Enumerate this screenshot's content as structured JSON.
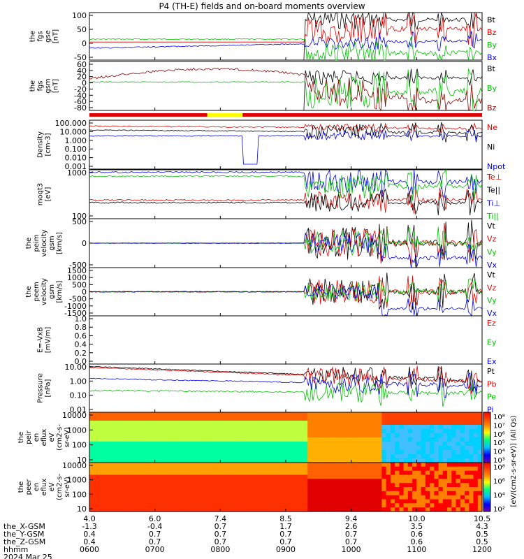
{
  "title": "P4 (TH-E) fields and on-board moments overview",
  "chart_data": [
    {
      "type": "line",
      "ylabel_lines": [
        "the",
        "fgs",
        "gse",
        "[nT]"
      ],
      "yticks": [
        "100",
        "50",
        "0",
        "-50"
      ],
      "ylim": [
        -60,
        100
      ],
      "legend": [
        {
          "name": "Bt",
          "color": "#000000"
        },
        {
          "name": "Bz",
          "color": "#e00000"
        },
        {
          "name": "By",
          "color": "#00c000"
        },
        {
          "name": "Bx",
          "color": "#0000e0"
        }
      ]
    },
    {
      "type": "line",
      "ylabel_lines": [
        "the",
        "fgs",
        "gsm",
        "[nT]"
      ],
      "yticks": [
        "60",
        "40",
        "20",
        "0",
        "-20",
        "-40",
        "-60",
        "-80"
      ],
      "ylim": [
        -90,
        60
      ],
      "legend": [
        {
          "name": "Bt",
          "color": "#000000"
        },
        {
          "name": "By",
          "color": "#00c000"
        },
        {
          "name": "Bz",
          "color": "#8b0000"
        }
      ]
    },
    {
      "type": "line",
      "ylabel_lines": [
        "Density",
        "[cm-3]"
      ],
      "yticks": [
        "100.000",
        "10.000",
        "1.000",
        "0.100",
        "0.010",
        "0.001"
      ],
      "ylim": [
        0.0005,
        300
      ],
      "log": true,
      "legend": [
        {
          "name": "Ne",
          "color": "#e00000"
        },
        {
          "name": "Ni",
          "color": "#000000"
        },
        {
          "name": "Npot",
          "color": "#0000e0"
        }
      ]
    },
    {
      "type": "line",
      "ylabel_lines": [
        "moqt3",
        "[eV]"
      ],
      "yticks": [
        "1000",
        "100"
      ],
      "ylim": [
        30,
        5000
      ],
      "log": true,
      "legend": [
        {
          "name": "Te⊥",
          "color": "#e00000"
        },
        {
          "name": "Te||",
          "color": "#000000"
        },
        {
          "name": "Ti⊥",
          "color": "#0000e0"
        },
        {
          "name": "Ti||",
          "color": "#00c000"
        }
      ]
    },
    {
      "type": "line",
      "ylabel_lines": [
        "the",
        "peim",
        "velocity",
        "gsm",
        "[km/s]"
      ],
      "yticks": [
        "500",
        "0",
        "-500"
      ],
      "ylim": [
        -800,
        800
      ],
      "legend": [
        {
          "name": "Vt",
          "color": "#000000"
        },
        {
          "name": "Vz",
          "color": "#e00000"
        },
        {
          "name": "Vy",
          "color": "#00c000"
        },
        {
          "name": "Vx",
          "color": "#0000e0"
        }
      ]
    },
    {
      "type": "line",
      "ylabel_lines": [
        "the",
        "peem",
        "velocity",
        "gsm",
        "[km/s]"
      ],
      "yticks": [
        "1500",
        "1000",
        "500",
        "0",
        "-500",
        "-1000",
        "-1500"
      ],
      "ylim": [
        -1500,
        1500
      ],
      "legend": [
        {
          "name": "Vt",
          "color": "#000000"
        },
        {
          "name": "Vz",
          "color": "#e00000"
        },
        {
          "name": "Vy",
          "color": "#00c000"
        },
        {
          "name": "Vx",
          "color": "#0000e0"
        }
      ]
    },
    {
      "type": "line",
      "ylabel_lines": [
        "E=-VxB",
        "[mV/m]"
      ],
      "yticks": [
        "1.0",
        "0.8",
        "0.6",
        "0.4",
        "0.2",
        "0.0"
      ],
      "ylim": [
        0,
        1
      ],
      "legend": [
        {
          "name": "Ez",
          "color": "#e00000"
        },
        {
          "name": "Ey",
          "color": "#00c000"
        },
        {
          "name": "Ex",
          "color": "#0000e0"
        }
      ]
    },
    {
      "type": "line",
      "ylabel_lines": [
        "Pressure",
        "[nPa]"
      ],
      "yticks": [
        "10.00",
        "1.00",
        "0.10",
        "0.01"
      ],
      "ylim": [
        0.003,
        30
      ],
      "log": true,
      "legend": [
        {
          "name": "Pt",
          "color": "#000000"
        },
        {
          "name": "Pb",
          "color": "#e00000"
        },
        {
          "name": "Pe",
          "color": "#00c000"
        },
        {
          "name": "Pi",
          "color": "#0000e0"
        }
      ]
    },
    {
      "type": "heatmap",
      "ylabel_lines": [
        "the",
        "peir",
        "en",
        "eflux",
        "eV",
        "(cm2-s-",
        "sr-eV)"
      ],
      "yticks": [
        "10000",
        "1000",
        "100",
        "10"
      ],
      "ylim": [
        5,
        30000
      ],
      "log": true,
      "colorbar_ticks": [
        "10⁸",
        "10⁷",
        "10⁶",
        "10⁵",
        "10⁴",
        "10³"
      ]
    },
    {
      "type": "heatmap",
      "ylabel_lines": [
        "the",
        "peer",
        "en",
        "eflux",
        "eV",
        "(cm2-s-",
        "sr-eV)"
      ],
      "yticks": [
        "10000",
        "1000",
        "100",
        "10"
      ],
      "ylim": [
        5,
        30000
      ],
      "log": true,
      "colorbar_ticks": [
        "10⁸",
        "10⁶",
        "10⁴",
        "10²"
      ]
    }
  ],
  "colorbar_label": "[eV/(cm2-s-sr-eV)] (All Qs)",
  "x_axis": {
    "ticks": [
      "4.0",
      "6.0",
      "7.4",
      "8.5",
      "9.4",
      "10.0",
      "10.5"
    ],
    "rows": [
      {
        "label": "the_X-GSM",
        "values": [
          "-1.3",
          "-0.4",
          "0.7",
          "1.7",
          "2.6",
          "3.5",
          "4.3"
        ]
      },
      {
        "label": "the_Y-GSM",
        "values": [
          "0.4",
          "0.7",
          "0.7",
          "0.7",
          "0.7",
          "0.6",
          "0.5"
        ]
      },
      {
        "label": "the_Z-GSM",
        "values": [
          "0.4",
          "0.7",
          "0.7",
          "0.7",
          "0.7",
          "0.6",
          "0.5"
        ]
      },
      {
        "label": "hhmm",
        "values": [
          "0600",
          "0700",
          "0800",
          "0900",
          "1000",
          "1100",
          "1200"
        ]
      }
    ],
    "date": "2024 Mar 25"
  },
  "colors": {
    "red": "#e00000",
    "green": "#00c000",
    "blue": "#0000e0",
    "black": "#000000",
    "darkred": "#8b0000",
    "yellow": "#ffff00"
  }
}
